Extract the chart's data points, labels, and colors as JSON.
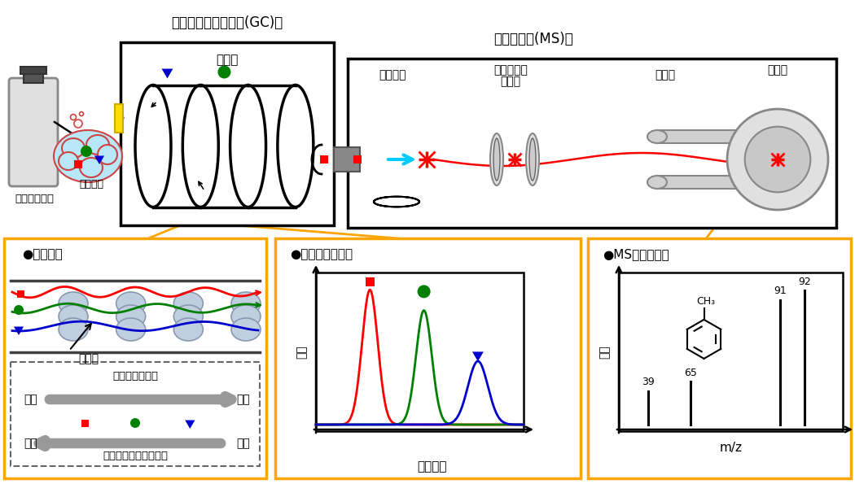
{
  "bg_color": "#ffffff",
  "orange": "#FFA500",
  "red": "#FF0000",
  "green": "#008000",
  "blue": "#0000CD",
  "gc_label": "ガスクロマトグラフ(GC)部",
  "ms_label": "質量分析計(MS)部",
  "carrier_gas_label": "キャリアガス",
  "sample_intro_label": "試料導入",
  "column_label": "カラム",
  "ion_label": "イオン化",
  "focus_label": "フォーカス\nレンズ",
  "quad_label": "四重極",
  "detector_label": "検出器",
  "filler_label": "充填剤",
  "chromatogram_label": "クロマトグラム",
  "ms_spectrum_label": "MSスペクトル",
  "retention_time_label": "保持時間",
  "intensity_label": "強度",
  "mz_label": "m/z",
  "sep_mech_label": "分離機構",
  "interaction_label": "相互作用の強さ",
  "weak_label": "弱い",
  "strong_label": "強い",
  "fast_label": "速い",
  "slow_label": "遅い",
  "elution_label": "溶出速度（保持時間）",
  "ms_peaks": [
    {
      "xf": 0.13,
      "hf": 0.25,
      "label": "39"
    },
    {
      "xf": 0.32,
      "hf": 0.32,
      "label": "65"
    },
    {
      "xf": 0.72,
      "hf": 0.93,
      "label": "91"
    },
    {
      "xf": 0.83,
      "hf": 1.0,
      "label": "92"
    }
  ]
}
